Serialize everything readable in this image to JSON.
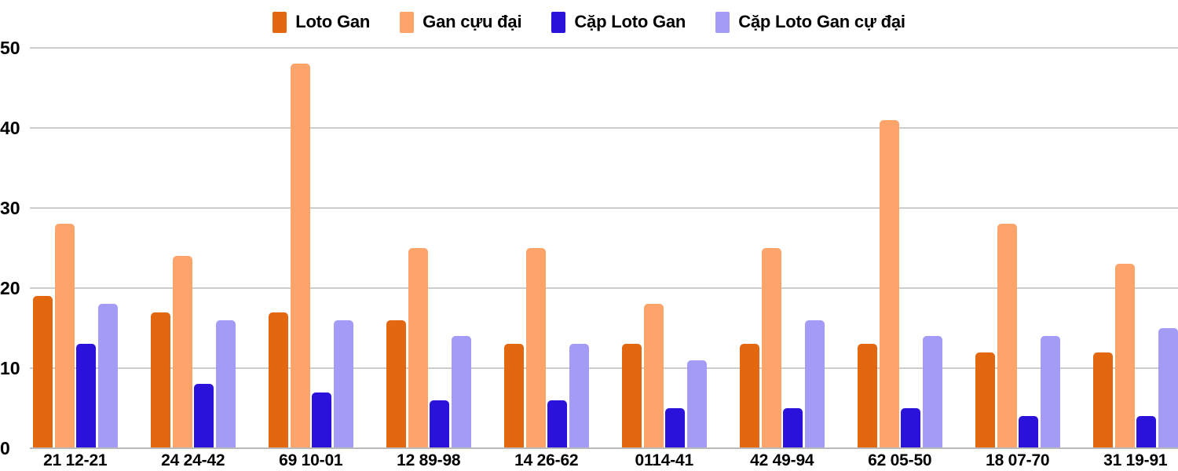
{
  "chart_data": {
    "type": "bar",
    "title": "",
    "xlabel": "",
    "ylabel": "",
    "categories": [
      "21 12-21",
      "24 24-42",
      "69 10-01",
      "12 89-98",
      "14 26-62",
      "0114-41",
      "42 49-94",
      "62 05-50",
      "18 07-70",
      "31 19-91"
    ],
    "series": [
      {
        "name": "Loto Gan",
        "color": "#e2670f",
        "values": [
          19,
          17,
          17,
          16,
          13,
          13,
          13,
          13,
          12,
          12
        ]
      },
      {
        "name": "Gan cựu đại",
        "color": "#fca46a",
        "values": [
          28,
          24,
          48,
          25,
          25,
          18,
          25,
          41,
          28,
          23
        ]
      },
      {
        "name": "Cặp Loto Gan",
        "color": "#2a12da",
        "values": [
          13,
          8,
          7,
          6,
          6,
          5,
          5,
          5,
          4,
          4
        ]
      },
      {
        "name": "Cặp Loto Gan cự đại",
        "color": "#a39bf6",
        "values": [
          18,
          16,
          16,
          14,
          13,
          11,
          16,
          14,
          14,
          15
        ]
      }
    ],
    "y_ticks": [
      0,
      10,
      20,
      30,
      40,
      50
    ],
    "ylim": [
      0,
      50
    ],
    "grid": true,
    "legend_position": "top",
    "colors": {
      "gridline": "#cccccc",
      "baseline": "#b9b9b9",
      "text": "#000000",
      "background": "#ffffff"
    }
  }
}
